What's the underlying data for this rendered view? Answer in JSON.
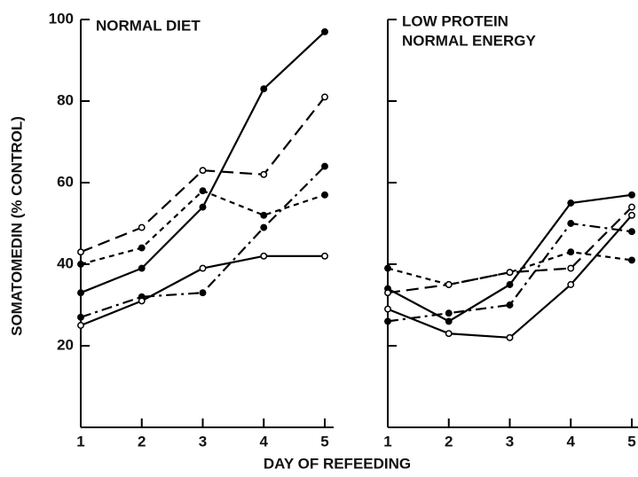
{
  "chart_data": [
    {
      "type": "line",
      "ylabel": "SOMATOMEDIN (% CONTROL)",
      "xlabel": "DAY OF REFEEDING",
      "annotations": [
        "NORMAL DIET"
      ],
      "x": [
        1,
        2,
        3,
        4,
        5
      ],
      "xlim": [
        1,
        5
      ],
      "xticks": [
        1,
        2,
        3,
        4,
        5
      ],
      "ylim": [
        0,
        100
      ],
      "yticks": [
        20,
        40,
        60,
        80,
        100
      ],
      "show_ytick_labels": true,
      "series": [
        {
          "color": "#000000",
          "style": "solid",
          "marker": "filled",
          "values": [
            33,
            39,
            54,
            83,
            97
          ]
        },
        {
          "color": "#000000",
          "style": "dashed",
          "marker": "open",
          "values": [
            43,
            49,
            63,
            62,
            81
          ]
        },
        {
          "color": "#000000",
          "style": "short-dashed",
          "marker": "filled",
          "values": [
            40,
            44,
            58,
            52,
            57
          ]
        },
        {
          "color": "#000000",
          "style": "dash-dot",
          "marker": "filled",
          "values": [
            27,
            32,
            33,
            49,
            64
          ]
        },
        {
          "color": "#000000",
          "style": "solid",
          "marker": "open",
          "values": [
            25,
            31,
            39,
            42,
            42
          ]
        }
      ]
    },
    {
      "type": "line",
      "annotations": [
        "LOW PROTEIN",
        "NORMAL ENERGY"
      ],
      "x": [
        1,
        2,
        3,
        4,
        5
      ],
      "xlim": [
        1,
        5
      ],
      "xticks": [
        1,
        2,
        3,
        4,
        5
      ],
      "ylim": [
        0,
        100
      ],
      "yticks": [
        20,
        40,
        60,
        80,
        100
      ],
      "show_ytick_labels": false,
      "series": [
        {
          "color": "#000000",
          "style": "solid",
          "marker": "filled",
          "values": [
            34,
            26,
            35,
            55,
            57
          ]
        },
        {
          "color": "#000000",
          "style": "solid",
          "marker": "open",
          "values": [
            29,
            23,
            22,
            35,
            52
          ]
        },
        {
          "color": "#000000",
          "style": "dash-dot",
          "marker": "filled",
          "values": [
            26,
            28,
            30,
            50,
            48
          ]
        },
        {
          "color": "#000000",
          "style": "short-dashed",
          "marker": "filled",
          "values": [
            39,
            35,
            38,
            43,
            41
          ]
        },
        {
          "color": "#000000",
          "style": "dashed",
          "marker": "open",
          "values": [
            33,
            35,
            38,
            39,
            54
          ]
        }
      ]
    }
  ]
}
